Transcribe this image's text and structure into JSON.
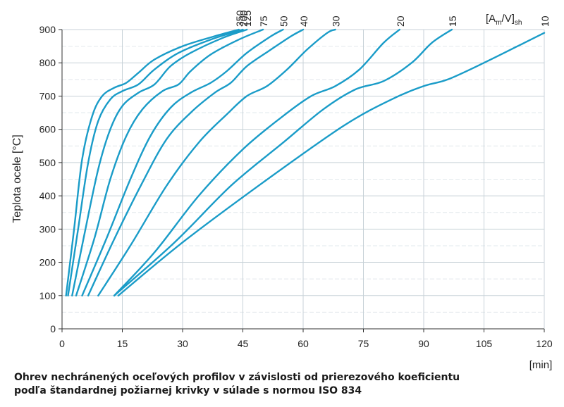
{
  "chart_data": {
    "type": "line",
    "ylabel": "Teplota ocele  [°C]",
    "xunit": "[min]",
    "xlim": [
      0,
      120
    ],
    "ylim": [
      0,
      900
    ],
    "xticks": [
      0,
      15,
      30,
      45,
      60,
      75,
      90,
      105,
      120
    ],
    "yticks": [
      0,
      100,
      200,
      300,
      400,
      500,
      600,
      700,
      800,
      900
    ],
    "grid": true,
    "legend_title": "[Am/V]sh",
    "line_color": "#1a9cc8",
    "series": [
      {
        "name": "350",
        "points": [
          [
            1,
            100
          ],
          [
            3,
            300
          ],
          [
            5,
            510
          ],
          [
            7.5,
            640
          ],
          [
            10,
            700
          ],
          [
            13,
            725
          ],
          [
            16,
            740
          ],
          [
            19,
            770
          ],
          [
            23,
            810
          ],
          [
            30,
            850
          ],
          [
            38,
            880
          ],
          [
            44,
            900
          ]
        ]
      },
      {
        "name": "200",
        "points": [
          [
            1.5,
            100
          ],
          [
            4,
            300
          ],
          [
            6.5,
            500
          ],
          [
            9,
            625
          ],
          [
            12,
            690
          ],
          [
            15,
            715
          ],
          [
            19,
            735
          ],
          [
            23,
            780
          ],
          [
            29,
            830
          ],
          [
            37,
            870
          ],
          [
            45,
            900
          ]
        ]
      },
      {
        "name": "125",
        "points": [
          [
            2.5,
            100
          ],
          [
            5.5,
            280
          ],
          [
            9,
            480
          ],
          [
            12,
            600
          ],
          [
            15,
            670
          ],
          [
            19,
            710
          ],
          [
            23,
            735
          ],
          [
            27,
            790
          ],
          [
            32,
            830
          ],
          [
            40,
            875
          ],
          [
            46,
            900
          ]
        ]
      },
      {
        "name": "75",
        "points": [
          [
            3.5,
            100
          ],
          [
            8,
            270
          ],
          [
            12,
            450
          ],
          [
            16,
            580
          ],
          [
            20,
            660
          ],
          [
            25,
            715
          ],
          [
            29,
            735
          ],
          [
            32,
            775
          ],
          [
            37,
            825
          ],
          [
            44,
            870
          ],
          [
            50,
            900
          ]
        ]
      },
      {
        "name": "50",
        "points": [
          [
            5,
            100
          ],
          [
            11,
            270
          ],
          [
            17,
            450
          ],
          [
            22,
            580
          ],
          [
            27,
            665
          ],
          [
            32,
            710
          ],
          [
            37,
            740
          ],
          [
            41,
            775
          ],
          [
            46,
            830
          ],
          [
            52,
            880
          ],
          [
            55,
            900
          ]
        ]
      },
      {
        "name": "40",
        "points": [
          [
            6.5,
            100
          ],
          [
            13,
            270
          ],
          [
            20,
            440
          ],
          [
            26,
            570
          ],
          [
            32,
            650
          ],
          [
            38,
            710
          ],
          [
            42,
            740
          ],
          [
            46,
            790
          ],
          [
            52,
            840
          ],
          [
            57,
            880
          ],
          [
            60,
            900
          ]
        ]
      },
      {
        "name": "30",
        "points": [
          [
            9,
            100
          ],
          [
            17,
            250
          ],
          [
            26,
            430
          ],
          [
            34,
            560
          ],
          [
            41,
            645
          ],
          [
            46,
            700
          ],
          [
            51,
            730
          ],
          [
            56,
            780
          ],
          [
            61,
            840
          ],
          [
            66,
            890
          ],
          [
            68,
            900
          ]
        ]
      },
      {
        "name": "20",
        "points": [
          [
            13,
            100
          ],
          [
            23,
            230
          ],
          [
            34,
            400
          ],
          [
            45,
            540
          ],
          [
            55,
            640
          ],
          [
            62,
            700
          ],
          [
            68,
            730
          ],
          [
            74,
            780
          ],
          [
            80,
            860
          ],
          [
            84,
            900
          ]
        ]
      },
      {
        "name": "15",
        "points": [
          [
            13,
            100
          ],
          [
            28,
            260
          ],
          [
            42,
            430
          ],
          [
            55,
            560
          ],
          [
            65,
            660
          ],
          [
            73,
            720
          ],
          [
            80,
            745
          ],
          [
            87,
            800
          ],
          [
            92,
            860
          ],
          [
            97,
            900
          ]
        ]
      },
      {
        "name": "10",
        "points": [
          [
            14,
            100
          ],
          [
            30,
            260
          ],
          [
            50,
            440
          ],
          [
            70,
            610
          ],
          [
            82,
            690
          ],
          [
            90,
            730
          ],
          [
            96,
            750
          ],
          [
            105,
            800
          ],
          [
            115,
            860
          ],
          [
            120,
            890
          ]
        ]
      }
    ]
  },
  "caption": {
    "line1": "Ohrev nechránených oceľových profilov v závislosti od prierezového koeficientu",
    "line2": "podľa štandardnej požiarnej krivky v súlade s normou ISO 834"
  }
}
